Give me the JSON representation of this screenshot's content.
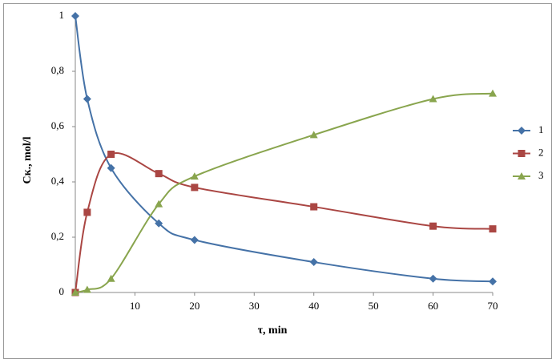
{
  "chart_data": {
    "type": "line",
    "xlabel": "τ,   min",
    "ylabel": "Ск.,  mol/l",
    "x": [
      0,
      2,
      6,
      14,
      20,
      40,
      60,
      70
    ],
    "series": [
      {
        "name": "1",
        "color": "#4572a7",
        "marker": "diamond",
        "values": [
          1,
          0.7,
          0.45,
          0.25,
          0.19,
          0.11,
          0.05,
          0.04
        ]
      },
      {
        "name": "2",
        "color": "#aa4643",
        "marker": "square",
        "values": [
          0,
          0.29,
          0.5,
          0.43,
          0.38,
          0.31,
          0.24,
          0.23
        ]
      },
      {
        "name": "3",
        "color": "#89a54e",
        "marker": "triangle",
        "values": [
          0,
          0.01,
          0.05,
          0.32,
          0.42,
          0.57,
          0.7,
          0.72
        ]
      }
    ],
    "xlim": [
      0,
      70
    ],
    "xticks": [
      10,
      20,
      30,
      40,
      50,
      60,
      70
    ],
    "ylim": [
      0,
      1
    ],
    "yticks": [
      0,
      {
        "value": 0.2,
        "label": "0,2"
      },
      {
        "value": 0.4,
        "label": "0,4"
      },
      {
        "value": 0.6,
        "label": "0,6"
      },
      {
        "value": 0.8,
        "label": "0,8"
      },
      1
    ],
    "legend": "right",
    "smooth": true
  }
}
